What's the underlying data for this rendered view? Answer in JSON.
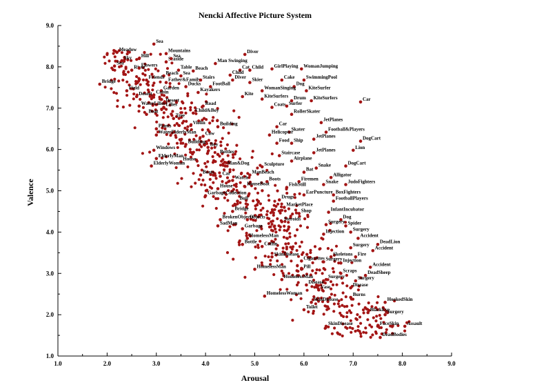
{
  "chart_data": {
    "type": "scatter",
    "title": "Nencki Affective Picture System",
    "xlabel": "Arousal",
    "ylabel": "Valence",
    "xlim": [
      1.0,
      9.0
    ],
    "ylim": [
      1.0,
      9.0
    ],
    "xticks": [
      "1.0",
      "2.0",
      "3.0",
      "4.0",
      "5.0",
      "6.0",
      "7.0",
      "8.0",
      "9.0"
    ],
    "yticks": [
      "1.0",
      "2.0",
      "3.0",
      "4.0",
      "5.0",
      "6.0",
      "7.0",
      "8.0",
      "9.0"
    ],
    "grid": false,
    "marker_color": "#a31515",
    "labeled_points": [
      {
        "label": "Sea",
        "x": 2.95,
        "y": 8.55
      },
      {
        "label": "Meadow",
        "x": 2.2,
        "y": 8.35
      },
      {
        "label": "Mountains",
        "x": 3.2,
        "y": 8.32
      },
      {
        "label": "Diver",
        "x": 4.8,
        "y": 8.3
      },
      {
        "label": "Sky",
        "x": 2.3,
        "y": 8.15
      },
      {
        "label": "Hill",
        "x": 2.65,
        "y": 8.2
      },
      {
        "label": "Seaside",
        "x": 3.2,
        "y": 8.12
      },
      {
        "label": "Sea",
        "x": 3.3,
        "y": 8.2
      },
      {
        "label": "Man Swinging",
        "x": 4.2,
        "y": 8.08
      },
      {
        "label": "Sea",
        "x": 2.15,
        "y": 8.02
      },
      {
        "label": "River",
        "x": 2.5,
        "y": 7.92
      },
      {
        "label": "Flowers",
        "x": 2.65,
        "y": 7.97
      },
      {
        "label": "Table",
        "x": 3.45,
        "y": 7.92
      },
      {
        "label": "Beach",
        "x": 3.75,
        "y": 7.9
      },
      {
        "label": "Cat",
        "x": 4.7,
        "y": 7.92
      },
      {
        "label": "Child",
        "x": 4.9,
        "y": 7.92
      },
      {
        "label": "GirlPlaying",
        "x": 5.35,
        "y": 7.95
      },
      {
        "label": "WomanJumping",
        "x": 5.95,
        "y": 7.95
      },
      {
        "label": "Child",
        "x": 4.5,
        "y": 7.8
      },
      {
        "label": "Beach",
        "x": 3.15,
        "y": 7.78
      },
      {
        "label": "Sea",
        "x": 3.5,
        "y": 7.78
      },
      {
        "label": "Friends",
        "x": 2.8,
        "y": 7.68
      },
      {
        "label": "Father&Family",
        "x": 3.2,
        "y": 7.62
      },
      {
        "label": "Stairs",
        "x": 3.9,
        "y": 7.68
      },
      {
        "label": "Diver",
        "x": 4.55,
        "y": 7.68
      },
      {
        "label": "Skier",
        "x": 4.9,
        "y": 7.62
      },
      {
        "label": "Cake",
        "x": 5.55,
        "y": 7.68
      },
      {
        "label": "SwimmingPool",
        "x": 6.0,
        "y": 7.68
      },
      {
        "label": "Bridge",
        "x": 1.85,
        "y": 7.58
      },
      {
        "label": "Ducks",
        "x": 3.6,
        "y": 7.52
      },
      {
        "label": "FootBall",
        "x": 4.1,
        "y": 7.52
      },
      {
        "label": "Dog",
        "x": 5.8,
        "y": 7.52
      },
      {
        "label": "Field",
        "x": 2.4,
        "y": 7.42
      },
      {
        "label": "Garden",
        "x": 3.1,
        "y": 7.42
      },
      {
        "label": "Kayakers",
        "x": 3.85,
        "y": 7.38
      },
      {
        "label": "WomanSinging",
        "x": 5.15,
        "y": 7.42
      },
      {
        "label": "KiteSurfer",
        "x": 6.05,
        "y": 7.42
      },
      {
        "label": "Desert",
        "x": 2.6,
        "y": 7.28
      },
      {
        "label": "Cabin",
        "x": 2.95,
        "y": 7.32
      },
      {
        "label": "Kite",
        "x": 4.75,
        "y": 7.28
      },
      {
        "label": "KiteSurfers",
        "x": 5.15,
        "y": 7.22
      },
      {
        "label": "Drum",
        "x": 5.75,
        "y": 7.18
      },
      {
        "label": "KiteSurfers",
        "x": 6.15,
        "y": 7.18
      },
      {
        "label": "Car",
        "x": 7.15,
        "y": 7.15
      },
      {
        "label": "Desert",
        "x": 3.15,
        "y": 7.12
      },
      {
        "label": "WaterLilies",
        "x": 2.65,
        "y": 7.05
      },
      {
        "label": "Lilies",
        "x": 3.15,
        "y": 7.02
      },
      {
        "label": "Coats",
        "x": 5.35,
        "y": 7.02
      },
      {
        "label": "Surfer",
        "x": 5.65,
        "y": 7.05
      },
      {
        "label": "Road",
        "x": 3.95,
        "y": 7.05
      },
      {
        "label": "Boat",
        "x": 2.8,
        "y": 6.85
      },
      {
        "label": "Child&Boy",
        "x": 3.75,
        "y": 6.88
      },
      {
        "label": "RollerSkater",
        "x": 5.75,
        "y": 6.85
      },
      {
        "label": "Tree",
        "x": 3.35,
        "y": 6.75
      },
      {
        "label": "JetPlanes",
        "x": 6.35,
        "y": 6.65
      },
      {
        "label": "Plants",
        "x": 3.0,
        "y": 6.5
      },
      {
        "label": "Violin",
        "x": 3.7,
        "y": 6.58
      },
      {
        "label": "Building",
        "x": 4.25,
        "y": 6.55
      },
      {
        "label": "Car",
        "x": 5.45,
        "y": 6.55
      },
      {
        "label": "Skater",
        "x": 5.7,
        "y": 6.42
      },
      {
        "label": "Football&Players",
        "x": 6.45,
        "y": 6.42
      },
      {
        "label": "WaterElderlyMan",
        "x": 3.0,
        "y": 6.35
      },
      {
        "label": "Cow",
        "x": 3.95,
        "y": 6.32
      },
      {
        "label": "Helicopter",
        "x": 5.3,
        "y": 6.35
      },
      {
        "label": "JetPlanes",
        "x": 6.2,
        "y": 6.25
      },
      {
        "label": "DogCart",
        "x": 7.15,
        "y": 6.2
      },
      {
        "label": "Building",
        "x": 3.6,
        "y": 6.12
      },
      {
        "label": "Food",
        "x": 5.45,
        "y": 6.15
      },
      {
        "label": "Ship",
        "x": 5.75,
        "y": 6.15
      },
      {
        "label": "Windows",
        "x": 2.95,
        "y": 5.98
      },
      {
        "label": "Boy",
        "x": 4.05,
        "y": 6.05
      },
      {
        "label": "Lion",
        "x": 7.0,
        "y": 5.98
      },
      {
        "label": "Bottles",
        "x": 4.25,
        "y": 5.88
      },
      {
        "label": "Staircase",
        "x": 5.5,
        "y": 5.85
      },
      {
        "label": "JetPlanes",
        "x": 6.2,
        "y": 5.92
      },
      {
        "label": "ElderlyMan",
        "x": 3.0,
        "y": 5.78
      },
      {
        "label": "House",
        "x": 3.5,
        "y": 5.7
      },
      {
        "label": "Airplane",
        "x": 5.75,
        "y": 5.72
      },
      {
        "label": "ElderlyWoman",
        "x": 2.9,
        "y": 5.6
      },
      {
        "label": "Man&Dog",
        "x": 4.4,
        "y": 5.6
      },
      {
        "label": "Sculpture",
        "x": 5.15,
        "y": 5.58
      },
      {
        "label": "Snake",
        "x": 6.25,
        "y": 5.55
      },
      {
        "label": "DogCart",
        "x": 6.85,
        "y": 5.6
      },
      {
        "label": "Bat",
        "x": 6.0,
        "y": 5.45
      },
      {
        "label": "Boats",
        "x": 3.9,
        "y": 5.38
      },
      {
        "label": "Car",
        "x": 4.3,
        "y": 5.35
      },
      {
        "label": "ManBeach",
        "x": 4.9,
        "y": 5.38
      },
      {
        "label": "Alligator",
        "x": 6.55,
        "y": 5.32
      },
      {
        "label": "Watch",
        "x": 4.55,
        "y": 5.25
      },
      {
        "label": "Boots",
        "x": 5.25,
        "y": 5.22
      },
      {
        "label": "Firemen",
        "x": 5.9,
        "y": 5.22
      },
      {
        "label": "Snake",
        "x": 6.4,
        "y": 5.15
      },
      {
        "label": "JudoFighters",
        "x": 6.85,
        "y": 5.15
      },
      {
        "label": "House",
        "x": 4.25,
        "y": 5.05
      },
      {
        "label": "HouseBoat",
        "x": 4.8,
        "y": 5.1
      },
      {
        "label": "FishStill",
        "x": 5.65,
        "y": 5.08
      },
      {
        "label": "GarbageCollection",
        "x": 4.0,
        "y": 4.88
      },
      {
        "label": "EarPuncture",
        "x": 6.0,
        "y": 4.9
      },
      {
        "label": "BoxFighters",
        "x": 6.6,
        "y": 4.9
      },
      {
        "label": "Bull",
        "x": 4.65,
        "y": 4.75
      },
      {
        "label": "Drugs",
        "x": 5.5,
        "y": 4.78
      },
      {
        "label": "FootballPlayers",
        "x": 6.6,
        "y": 4.75
      },
      {
        "label": "Bridge",
        "x": 4.55,
        "y": 4.5
      },
      {
        "label": "MarketPlace",
        "x": 5.6,
        "y": 4.6
      },
      {
        "label": "InfantIncubator",
        "x": 6.5,
        "y": 4.48
      },
      {
        "label": "BrokenObjects",
        "x": 4.3,
        "y": 4.3
      },
      {
        "label": "Objects",
        "x": 4.85,
        "y": 4.3
      },
      {
        "label": "Shop",
        "x": 5.9,
        "y": 4.45
      },
      {
        "label": "Dog",
        "x": 6.75,
        "y": 4.3
      },
      {
        "label": "SadMan",
        "x": 4.25,
        "y": 4.15
      },
      {
        "label": "Steroids",
        "x": 5.55,
        "y": 4.25
      },
      {
        "label": "Surgery",
        "x": 6.45,
        "y": 4.18
      },
      {
        "label": "Spider",
        "x": 6.85,
        "y": 4.15
      },
      {
        "label": "Garbage",
        "x": 4.75,
        "y": 4.08
      },
      {
        "label": "Surgery",
        "x": 6.95,
        "y": 4.0
      },
      {
        "label": "Injection",
        "x": 6.4,
        "y": 3.95
      },
      {
        "label": "Accident",
        "x": 7.1,
        "y": 3.85
      },
      {
        "label": "HomelessMan",
        "x": 4.85,
        "y": 3.85
      },
      {
        "label": "DeadLion",
        "x": 7.5,
        "y": 3.7
      },
      {
        "label": "Bottle",
        "x": 4.75,
        "y": 3.7
      },
      {
        "label": "Coffin",
        "x": 5.15,
        "y": 3.65
      },
      {
        "label": "Surgery",
        "x": 6.95,
        "y": 3.62
      },
      {
        "label": "Accident",
        "x": 7.4,
        "y": 3.55
      },
      {
        "label": "SkinDisease",
        "x": 5.35,
        "y": 3.4
      },
      {
        "label": "Skeletons",
        "x": 6.55,
        "y": 3.4
      },
      {
        "label": "Fire",
        "x": 7.05,
        "y": 3.4
      },
      {
        "label": "Cigarettes",
        "x": 5.95,
        "y": 3.3
      },
      {
        "label": "Surgery",
        "x": 6.4,
        "y": 3.28
      },
      {
        "label": "Injection",
        "x": 6.75,
        "y": 3.25
      },
      {
        "label": "HomelessMan",
        "x": 5.0,
        "y": 3.1
      },
      {
        "label": "Pill",
        "x": 5.95,
        "y": 3.1
      },
      {
        "label": "Accident",
        "x": 7.35,
        "y": 3.15
      },
      {
        "label": "Scraps",
        "x": 6.75,
        "y": 3.0
      },
      {
        "label": "DeadSheep",
        "x": 7.25,
        "y": 2.95
      },
      {
        "label": "HomelessMan",
        "x": 5.55,
        "y": 2.85
      },
      {
        "label": "Surgery",
        "x": 7.05,
        "y": 2.82
      },
      {
        "label": "Surgery",
        "x": 6.45,
        "y": 2.85
      },
      {
        "label": "Disease",
        "x": 6.05,
        "y": 2.72
      },
      {
        "label": "Disease",
        "x": 6.95,
        "y": 2.65
      },
      {
        "label": "Vase",
        "x": 6.3,
        "y": 2.6
      },
      {
        "label": "HomelessWoman",
        "x": 5.2,
        "y": 2.45
      },
      {
        "label": "Burns",
        "x": 6.95,
        "y": 2.42
      },
      {
        "label": "SkinDisease",
        "x": 6.15,
        "y": 2.3
      },
      {
        "label": "HookedSkin",
        "x": 7.65,
        "y": 2.3
      },
      {
        "label": "Toilet",
        "x": 6.0,
        "y": 2.12
      },
      {
        "label": "BlackEye",
        "x": 7.3,
        "y": 2.05
      },
      {
        "label": "Surgery",
        "x": 7.65,
        "y": 2.0
      },
      {
        "label": "SkinDisease",
        "x": 6.45,
        "y": 1.72
      },
      {
        "label": "FaceSkin",
        "x": 7.5,
        "y": 1.72
      },
      {
        "label": "Assault",
        "x": 8.05,
        "y": 1.72
      },
      {
        "label": "DeadBodies",
        "x": 7.55,
        "y": 1.45
      }
    ]
  }
}
